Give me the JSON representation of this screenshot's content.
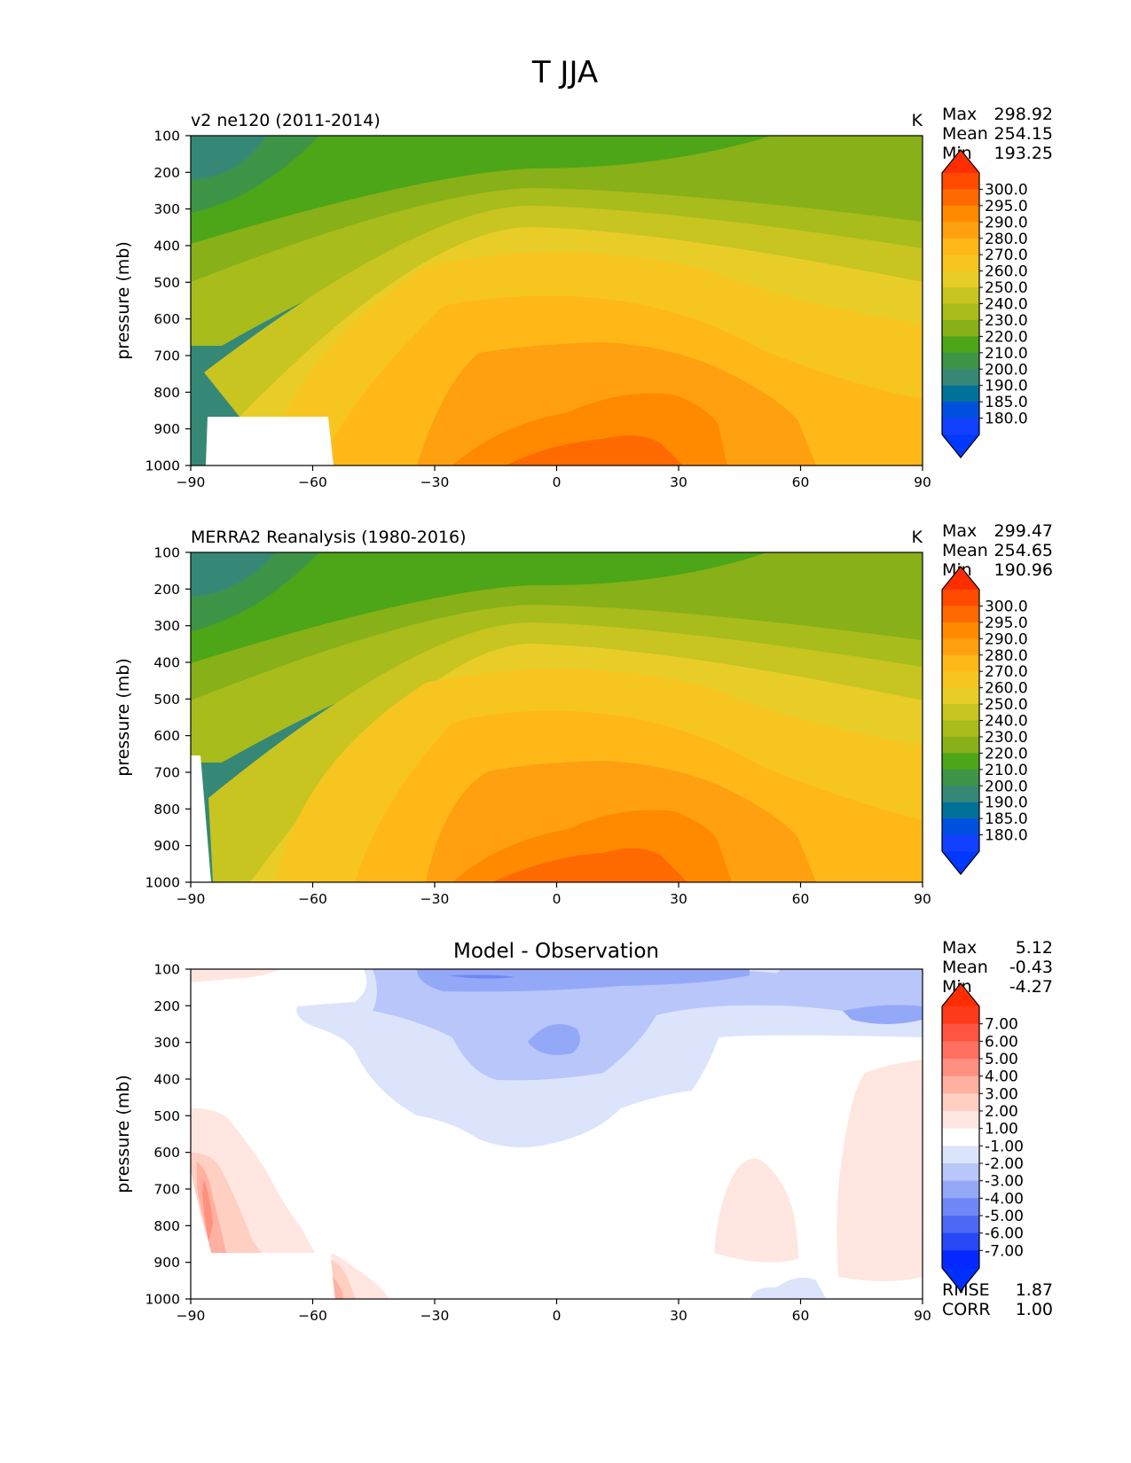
{
  "figure": {
    "suptitle": "T JJA"
  },
  "chart_data": [
    {
      "type": "heatmap",
      "title": "v2 ne120 (2011-2014)",
      "units": "K",
      "ylabel": "pressure (mb)",
      "xlim": [
        -90,
        90
      ],
      "ylim": [
        1000,
        100
      ],
      "xticks": [
        "−90",
        "−60",
        "−30",
        "0",
        "30",
        "60",
        "90"
      ],
      "yticks": [
        "100",
        "200",
        "300",
        "400",
        "500",
        "600",
        "700",
        "800",
        "900",
        "1000"
      ],
      "stats": {
        "max_label": "Max",
        "max": "298.92",
        "mean_label": "Mean",
        "mean": "254.15",
        "min_label": "Min",
        "min": "193.25"
      },
      "colorbar": {
        "labels": [
          "300.0",
          "295.0",
          "290.0",
          "280.0",
          "270.0",
          "260.0",
          "250.0",
          "240.0",
          "230.0",
          "220.0",
          "210.0",
          "200.0",
          "190.0",
          "185.0",
          "180.0"
        ],
        "colors": [
          "#ff4a00",
          "#ff6a00",
          "#ff8a00",
          "#ffa010",
          "#ffb818",
          "#f7c520",
          "#e8cd28",
          "#c8c420",
          "#a8bc1c",
          "#88b018",
          "#4da518",
          "#3e9446",
          "#368876",
          "#00729a",
          "#0050e0",
          "#1240ff"
        ],
        "cap_top": "#ff2e00",
        "cap_bottom": "#0038ff"
      }
    },
    {
      "type": "heatmap",
      "title": "MERRA2 Reanalysis (1980-2016)",
      "units": "K",
      "ylabel": "pressure (mb)",
      "xlim": [
        -90,
        90
      ],
      "ylim": [
        1000,
        100
      ],
      "xticks": [
        "−90",
        "−60",
        "−30",
        "0",
        "30",
        "60",
        "90"
      ],
      "yticks": [
        "100",
        "200",
        "300",
        "400",
        "500",
        "600",
        "700",
        "800",
        "900",
        "1000"
      ],
      "stats": {
        "max_label": "Max",
        "max": "299.47",
        "mean_label": "Mean",
        "mean": "254.65",
        "min_label": "Min",
        "min": "190.96"
      },
      "colorbar": {
        "labels": [
          "300.0",
          "295.0",
          "290.0",
          "280.0",
          "270.0",
          "260.0",
          "250.0",
          "240.0",
          "230.0",
          "220.0",
          "210.0",
          "200.0",
          "190.0",
          "185.0",
          "180.0"
        ],
        "colors": [
          "#ff4a00",
          "#ff6a00",
          "#ff8a00",
          "#ffa010",
          "#ffb818",
          "#f7c520",
          "#e8cd28",
          "#c8c420",
          "#a8bc1c",
          "#88b018",
          "#4da518",
          "#3e9446",
          "#368876",
          "#00729a",
          "#0050e0",
          "#1240ff"
        ],
        "cap_top": "#ff2e00",
        "cap_bottom": "#0038ff"
      }
    },
    {
      "type": "heatmap",
      "title": "Model - Observation",
      "units": "",
      "ylabel": "pressure (mb)",
      "xlim": [
        -90,
        90
      ],
      "ylim": [
        1000,
        100
      ],
      "xticks": [
        "−90",
        "−60",
        "−30",
        "0",
        "30",
        "60",
        "90"
      ],
      "yticks": [
        "100",
        "200",
        "300",
        "400",
        "500",
        "600",
        "700",
        "800",
        "900",
        "1000"
      ],
      "stats": {
        "max_label": "Max",
        "max": "5.12",
        "mean_label": "Mean",
        "mean": "-0.43",
        "min_label": "Min",
        "min": "-4.27"
      },
      "extra_stats": {
        "rmse_label": "RMSE",
        "rmse": "1.87",
        "corr_label": "CORR",
        "corr": "1.00"
      },
      "colorbar": {
        "labels": [
          "7.00",
          "6.00",
          "5.00",
          "4.00",
          "3.00",
          "2.00",
          "1.00",
          "-1.00",
          "-2.00",
          "-3.00",
          "-4.00",
          "-5.00",
          "-6.00",
          "-7.00"
        ],
        "colors": [
          "#ff3a1a",
          "#ff5540",
          "#ff7060",
          "#ff9080",
          "#ffb0a0",
          "#ffcfc2",
          "#ffe6e0",
          "#ffffff",
          "#dce4fc",
          "#b8c6fa",
          "#94a8f8",
          "#7088f6",
          "#4c68f4",
          "#2848f6",
          "#0428ff"
        ],
        "cap_top": "#ff2e00",
        "cap_bottom": "#0030ff"
      }
    }
  ]
}
